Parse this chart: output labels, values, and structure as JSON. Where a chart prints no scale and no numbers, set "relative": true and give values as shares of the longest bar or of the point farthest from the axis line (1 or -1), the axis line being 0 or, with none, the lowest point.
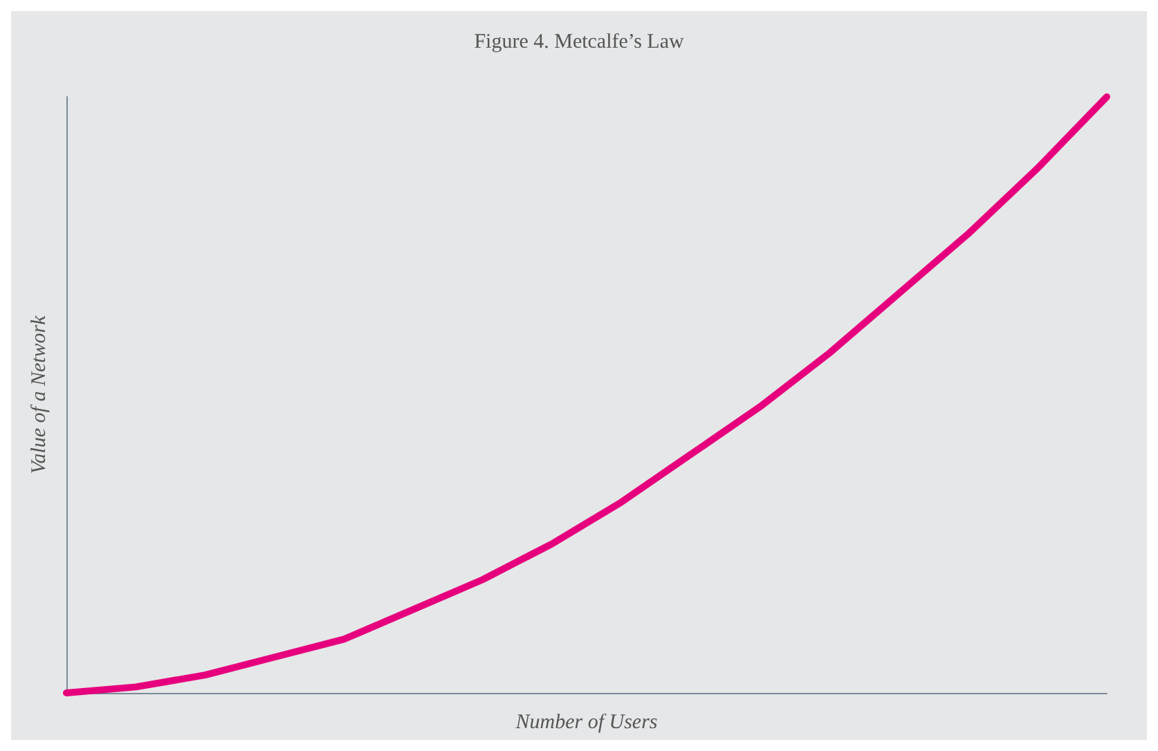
{
  "chart_data": {
    "type": "line",
    "title": "Figure 4. Metcalfe’s Law",
    "xlabel": "Number of Users",
    "ylabel": "Value of a Network",
    "relative": true,
    "categories": [
      null,
      null,
      null,
      null,
      null,
      null,
      null,
      null,
      null,
      null,
      null,
      null,
      null,
      null,
      null,
      null
    ],
    "series": [
      {
        "color": "#e6007e",
        "values": [
          0,
          0.01,
          0.03,
          0.06,
          0.09,
          0.14,
          0.19,
          0.25,
          0.32,
          0.4,
          0.48,
          0.57,
          0.67,
          0.77,
          0.88,
          1
        ]
      }
    ],
    "grid": false,
    "marker": "none",
    "line_style": "solid"
  }
}
